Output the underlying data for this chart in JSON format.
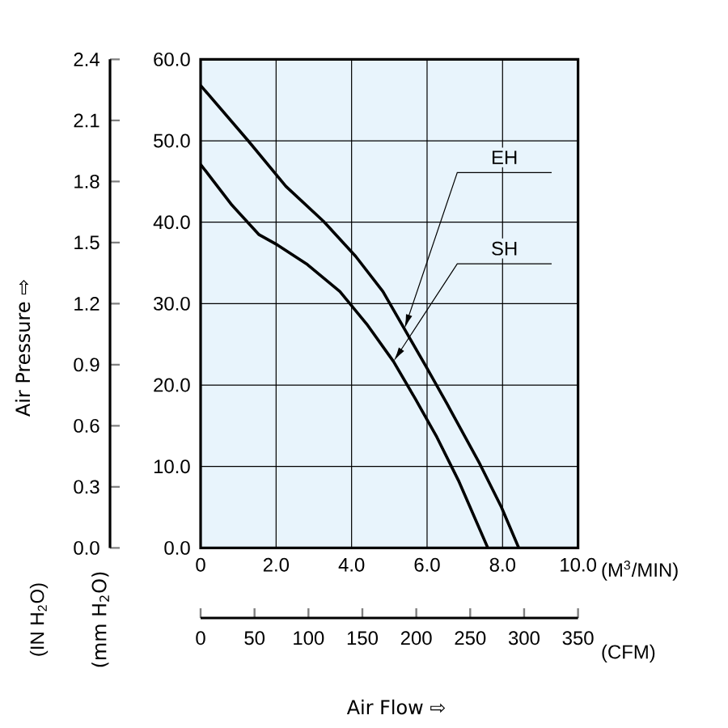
{
  "chart_data": {
    "type": "line",
    "xlabel": "(M$^{3}$/MIN)",
    "y2label": "(IN H$_{2}$O)",
    "x2label": "(CFM)",
    "annotations": [
      "Air Pressure ⇨",
      "(mm H$_{2}$O)",
      "Air Flow ⇨"
    ],
    "xlim": [
      0,
      10
    ],
    "xticks": [
      0,
      {
        "value": 2,
        "label": "2.0"
      },
      {
        "value": 4,
        "label": "4.0"
      },
      {
        "value": 6,
        "label": "6.0"
      },
      {
        "value": 8,
        "label": "8.0"
      },
      {
        "value": 10,
        "label": "10.0"
      }
    ],
    "ylim": [
      0,
      60
    ],
    "yticks": [
      {
        "value": 0,
        "label": "0.0"
      },
      {
        "value": 10,
        "label": "10.0"
      },
      {
        "value": 20,
        "label": "20.0"
      },
      {
        "value": 30,
        "label": "30.0"
      },
      {
        "value": 40,
        "label": "40.0"
      },
      {
        "value": 50,
        "label": "50.0"
      },
      {
        "value": 60,
        "label": "60.0"
      }
    ],
    "y2lim": [
      0,
      2.4
    ],
    "y2ticks": [
      {
        "value": 0,
        "label": "0.0"
      },
      0.3,
      0.6,
      0.9,
      1.2,
      1.5,
      1.8,
      2.1,
      2.4
    ],
    "x2lim": [
      0,
      350
    ],
    "x2ticks": [
      0,
      50,
      100,
      150,
      200,
      250,
      300,
      350
    ],
    "grid": true,
    "marker": "none",
    "line_style": "solid",
    "series": [
      {
        "name": "EH",
        "color": "#000000",
        "x": [
          0,
          1.26,
          2.26,
          3.26,
          4.11,
          4.83,
          5.4,
          5.97,
          6.54,
          7.4,
          7.97,
          8.43
        ],
        "values": [
          56.8,
          50.0,
          44.4,
          40.1,
          35.8,
          31.5,
          26.9,
          22.3,
          17.6,
          10.3,
          5.0,
          0
        ]
      },
      {
        "name": "SH",
        "color": "#000000",
        "x": [
          0,
          0.83,
          1.54,
          2.04,
          2.83,
          3.69,
          4.4,
          5.11,
          5.69,
          6.26,
          6.83,
          7.61
        ],
        "values": [
          47.1,
          42.1,
          38.5,
          37.2,
          34.8,
          31.5,
          27.5,
          22.9,
          18.3,
          13.6,
          8.3,
          0
        ]
      }
    ]
  }
}
